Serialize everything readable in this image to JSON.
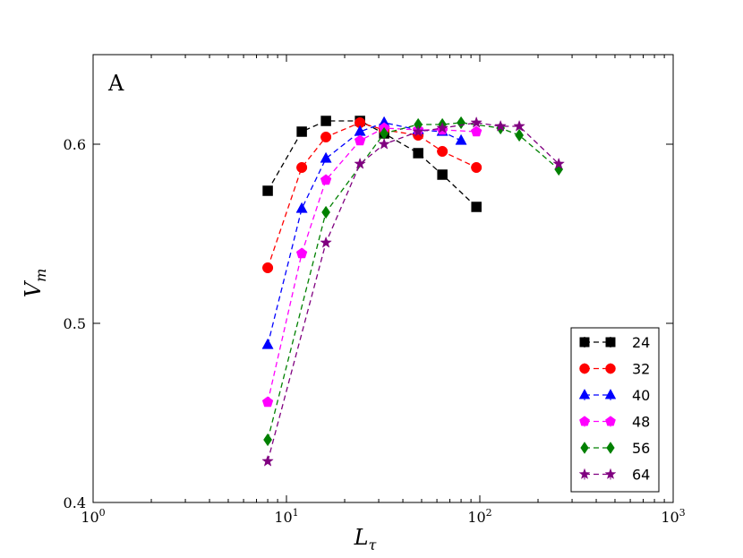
{
  "chart_data": {
    "type": "line",
    "panel_label": "A",
    "xlabel": "L",
    "xlabel_sub": "τ",
    "ylabel": "V",
    "ylabel_sub": "m",
    "xscale": "log",
    "xlim": [
      1,
      1000
    ],
    "ylim": [
      0.4,
      0.65
    ],
    "x_ticks": [
      {
        "value": 1,
        "base": "10",
        "exp": "0"
      },
      {
        "value": 10,
        "base": "10",
        "exp": "1"
      },
      {
        "value": 100,
        "base": "10",
        "exp": "2"
      },
      {
        "value": 1000,
        "base": "10",
        "exp": "3"
      }
    ],
    "y_ticks": [
      {
        "value": 0.4,
        "label": "0.4"
      },
      {
        "value": 0.5,
        "label": "0.5"
      },
      {
        "value": 0.6,
        "label": "0.6"
      }
    ],
    "legend_position": "bottom-right",
    "series": [
      {
        "name": "24",
        "color": "#000000",
        "marker": "square",
        "x": [
          8,
          12,
          16,
          24,
          32,
          48,
          64,
          96
        ],
        "y": [
          0.574,
          0.607,
          0.613,
          0.613,
          0.606,
          0.595,
          0.583,
          0.565
        ]
      },
      {
        "name": "32",
        "color": "#ff0000",
        "marker": "circle",
        "x": [
          8,
          12,
          16,
          24,
          32,
          48,
          64,
          96
        ],
        "y": [
          0.531,
          0.587,
          0.604,
          0.612,
          0.608,
          0.605,
          0.596,
          0.587
        ]
      },
      {
        "name": "40",
        "color": "#0000ff",
        "marker": "triangle",
        "x": [
          8,
          12,
          16,
          24,
          32,
          48,
          64,
          80
        ],
        "y": [
          0.488,
          0.564,
          0.592,
          0.607,
          0.612,
          0.608,
          0.607,
          0.602
        ]
      },
      {
        "name": "48",
        "color": "#ff00ff",
        "marker": "pentagon",
        "x": [
          8,
          12,
          16,
          24,
          32,
          48,
          64,
          96
        ],
        "y": [
          0.456,
          0.539,
          0.58,
          0.602,
          0.609,
          0.608,
          0.608,
          0.607
        ]
      },
      {
        "name": "56",
        "color": "#008000",
        "marker": "diamond",
        "x": [
          8,
          16,
          32,
          48,
          64,
          80,
          128,
          160,
          256
        ],
        "y": [
          0.435,
          0.562,
          0.606,
          0.611,
          0.611,
          0.612,
          0.609,
          0.605,
          0.586
        ]
      },
      {
        "name": "64",
        "color": "#800080",
        "marker": "star",
        "x": [
          8,
          16,
          24,
          32,
          48,
          64,
          96,
          128,
          160,
          256
        ],
        "y": [
          0.423,
          0.545,
          0.589,
          0.6,
          0.607,
          0.609,
          0.612,
          0.61,
          0.61,
          0.589
        ]
      }
    ]
  }
}
